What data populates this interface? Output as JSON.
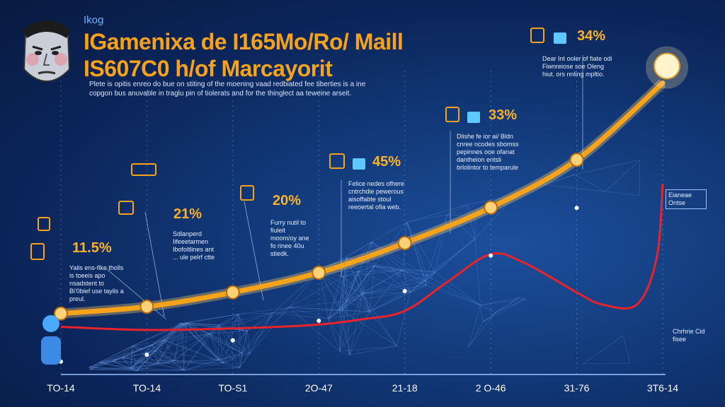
{
  "header": {
    "kicker": "Ikog",
    "title_line1": "IGamenixa de I165Mo/Ro/ Maill",
    "title_line2": "IS607C0 h/of Marcayorit",
    "subtitle": "Plete is opitis enreo do bue on stiting of the moening vaad redbiated fee tiberties is a ine copgon bus anuvable in traglu pin of tiolerats and for the thinglect aa teweine arseit."
  },
  "colors": {
    "primary_line": "#f7a21b",
    "secondary_line": "#e8232a",
    "accent": "#ffb12a",
    "grid": "#7fb0ff"
  },
  "icons": [
    "face-avatar-icon",
    "document-icon",
    "price-tag-icon",
    "bag-icon",
    "lightbulb-icon",
    "robot-mascot-icon",
    "pin-icon"
  ],
  "chart_data": {
    "type": "line",
    "title": "IGamenixa de I165Mo/Ro/ Maill IS607C0 h/of Marcayorit",
    "x": [
      "TO-14",
      "TO-14",
      "TO-S1",
      "2O-47",
      "21-18",
      "2 O-46",
      "31-76",
      "3T6-14"
    ],
    "series": [
      {
        "name": "",
        "color": "#f7a21b",
        "points": [
          {
            "x": 0,
            "y": 11.5
          },
          {
            "x": 1,
            "y": 12.8
          },
          {
            "x": 2,
            "y": 15.5
          },
          {
            "x": 3,
            "y": 19.2
          },
          {
            "x": 4,
            "y": 24.8
          },
          {
            "x": 5,
            "y": 31.5
          },
          {
            "x": 6,
            "y": 40.5
          },
          {
            "x": 7,
            "y": 55
          }
        ]
      },
      {
        "name": "",
        "color": "#e8232a",
        "points": [
          {
            "x": 0,
            "y": 9
          },
          {
            "x": 1,
            "y": 8.4
          },
          {
            "x": 2,
            "y": 8.7
          },
          {
            "x": 2.9,
            "y": 9.3
          },
          {
            "x": 3.5,
            "y": 10.4
          },
          {
            "x": 4,
            "y": 12
          },
          {
            "x": 4.5,
            "y": 17.5
          },
          {
            "x": 5,
            "y": 22.7
          },
          {
            "x": 5.4,
            "y": 21
          },
          {
            "x": 6,
            "y": 15.5
          },
          {
            "x": 6.3,
            "y": 13.2
          },
          {
            "x": 6.7,
            "y": 13.2
          },
          {
            "x": 6.93,
            "y": 22
          },
          {
            "x": 7,
            "y": 36
          }
        ]
      }
    ],
    "annotations": [
      {
        "label": "11.5%",
        "text": "Yalis ens-fike tholls is toeeis apo nsadstent to Bi'0bief use tayils a preul.",
        "at_x": 0
      },
      {
        "label": "21%",
        "text": "Sdlanperd Iifeeetarmen Ibofoltlines ant ... ule pelrf ctte",
        "at_x": 1
      },
      {
        "label": "20%",
        "text": "Furry nutil to fiuleit moom/oy ane fo rinee 40u stiedk.",
        "at_x": 2
      },
      {
        "label": "45%",
        "text": "Felice nedes ofhere cntrchdie pewerous aisoffabte stoul reeoertal ofia web.",
        "at_x": 3
      },
      {
        "label": "33%",
        "text": "Dlishe fe ior ai/ Bldn cnree ncodes sbomss pepinnes ooe ofanat dantheion entsli brlolintor to temparule",
        "at_x": 4
      },
      {
        "label": "34%",
        "text": "Dear Int ooler of fiate odi Fiwnreiose soe Oleng hiut. ors nnling mpltio.",
        "at_x": 6
      }
    ],
    "side_notes": [
      "Eianeae Ontse",
      "Chrhrie Cid fisee"
    ],
    "ylim": [
      0,
      60
    ],
    "grid": true,
    "legend": "none"
  }
}
